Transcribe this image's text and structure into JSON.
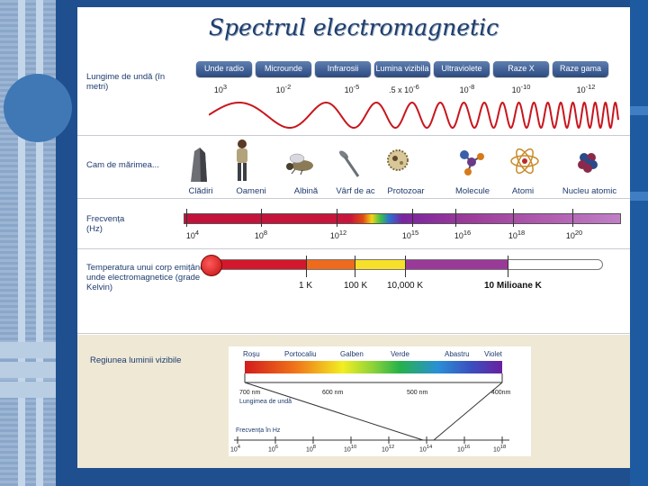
{
  "title": "Spectrul electromagnetic",
  "rows": {
    "wavelength_label": "Lungime de undă (în metri)",
    "size_label": "Cam de mărimea...",
    "frequency_label": "Frecvența (Hz)",
    "temperature_label": "Temperatura unui corp emițând unde electromagnetice (grade Kelvin)"
  },
  "bands": [
    {
      "name": "Unde radio",
      "wavelength": "10",
      "exp": "3"
    },
    {
      "name": "Microunde",
      "wavelength": "10",
      "exp": "-2"
    },
    {
      "name": "Infrarosii",
      "wavelength": "10",
      "exp": "-5"
    },
    {
      "name": "Lumina vizibila",
      "wavelength": ".5 x 10",
      "exp": "-6"
    },
    {
      "name": "Ultraviolete",
      "wavelength": "10",
      "exp": "-8"
    },
    {
      "name": "Raze X",
      "wavelength": "10",
      "exp": "-10"
    },
    {
      "name": "Raze gama",
      "wavelength": "10",
      "exp": "-12"
    }
  ],
  "objects": [
    "Clădiri",
    "Oameni",
    "Albină",
    "Vârf de ac",
    "Protozoar",
    "Molecule",
    "Atomi",
    "Nucleu atomic"
  ],
  "frequency_ticks": [
    {
      "base": "10",
      "exp": "4"
    },
    {
      "base": "10",
      "exp": "8"
    },
    {
      "base": "10",
      "exp": "12"
    },
    {
      "base": "10",
      "exp": "15"
    },
    {
      "base": "10",
      "exp": "16"
    },
    {
      "base": "10",
      "exp": "18"
    },
    {
      "base": "10",
      "exp": "20"
    }
  ],
  "temperature_ticks": [
    "1 K",
    "100 K",
    "10,000 K",
    "10 Milioane K"
  ],
  "visible": {
    "label": "Regiunea luminii vizibile",
    "colors": [
      "Roșu",
      "Portocaliu",
      "Galben",
      "Verde",
      "Abastru",
      "Violet"
    ],
    "wavelength_ticks": [
      "700 nm",
      "600 nm",
      "500 nm",
      "400nm"
    ],
    "wavelength_caption": "Lungimea de undă",
    "frequency_caption": "Frecvența în Hz",
    "frequency_ticks": [
      {
        "base": "10",
        "exp": "4"
      },
      {
        "base": "10",
        "exp": "6"
      },
      {
        "base": "10",
        "exp": "8"
      },
      {
        "base": "10",
        "exp": "10"
      },
      {
        "base": "10",
        "exp": "12"
      },
      {
        "base": "10",
        "exp": "14"
      },
      {
        "base": "10",
        "exp": "16"
      },
      {
        "base": "10",
        "exp": "18"
      }
    ]
  }
}
